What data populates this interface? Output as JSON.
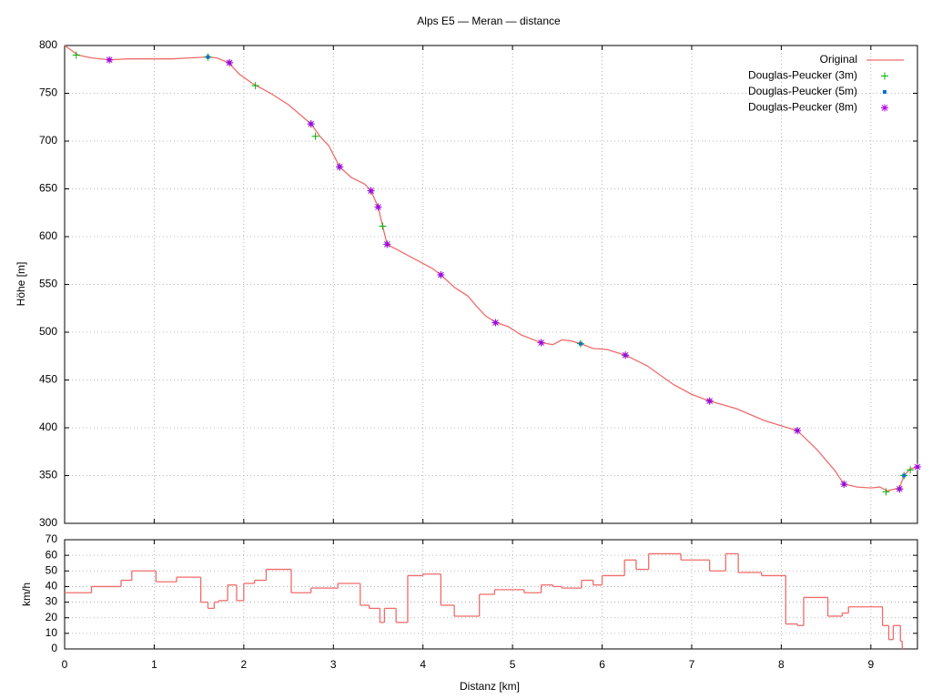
{
  "chart_data": [
    {
      "type": "line",
      "title": "Alps E5 — Meran — distance",
      "ylabel": "Höhe [m]",
      "xlim": [
        0,
        9.52
      ],
      "ylim": [
        300,
        800
      ],
      "yticks": [
        300,
        350,
        400,
        450,
        500,
        550,
        600,
        650,
        700,
        750,
        800
      ],
      "grid": true,
      "legend": "top-right",
      "series": [
        {
          "name": "Original",
          "color": "#f06b6b",
          "mode": "line",
          "x": [
            0,
            0.15,
            0.3,
            0.5,
            0.7,
            1.0,
            1.2,
            1.4,
            1.6,
            1.7,
            1.83,
            1.95,
            2.1,
            2.3,
            2.5,
            2.6,
            2.75,
            2.85,
            2.95,
            3.07,
            3.2,
            3.35,
            3.42,
            3.5,
            3.55,
            3.6,
            3.8,
            4.0,
            4.1,
            4.2,
            4.35,
            4.5,
            4.6,
            4.7,
            4.82,
            4.95,
            5.1,
            5.32,
            5.45,
            5.55,
            5.65,
            5.76,
            5.9,
            6.05,
            6.26,
            6.5,
            6.8,
            7.0,
            7.2,
            7.5,
            7.8,
            8.0,
            8.18,
            8.4,
            8.6,
            8.7,
            8.85,
            9.0,
            9.1,
            9.18,
            9.32,
            9.37,
            9.44,
            9.52
          ],
          "values": [
            800,
            790,
            787,
            785,
            786,
            786,
            786,
            787,
            788,
            787,
            782,
            770,
            760,
            750,
            738,
            730,
            718,
            705,
            695,
            673,
            662,
            655,
            648,
            631,
            611,
            592,
            582,
            572,
            567,
            560,
            547,
            538,
            527,
            517,
            510,
            506,
            497,
            489,
            487,
            492,
            491,
            488,
            483,
            482,
            476,
            465,
            445,
            435,
            428,
            420,
            408,
            402,
            397,
            377,
            355,
            341,
            338,
            337,
            338,
            334,
            337,
            350,
            357,
            359
          ]
        },
        {
          "name": "Douglas-Peucker (3m)",
          "color": "#00b000",
          "mode": "plus",
          "x": [
            0.13,
            1.6,
            1.84,
            2.13,
            2.75,
            2.8,
            3.07,
            3.42,
            3.5,
            3.55,
            3.6,
            4.2,
            4.81,
            5.32,
            5.76,
            6.26,
            7.2,
            8.18,
            8.7,
            9.17,
            9.32,
            9.37,
            9.44,
            9.52
          ],
          "values": [
            790,
            788,
            782,
            758,
            718,
            705,
            673,
            648,
            631,
            611,
            592,
            560,
            510,
            489,
            488,
            476,
            428,
            397,
            341,
            333,
            336,
            350,
            356,
            359
          ]
        },
        {
          "name": "Douglas-Peucker (5m)",
          "color": "#1070d0",
          "mode": "dot",
          "x": [
            0.5,
            1.6,
            1.84,
            2.75,
            3.07,
            3.42,
            3.5,
            3.6,
            4.2,
            4.81,
            5.32,
            5.76,
            6.26,
            7.2,
            8.18,
            8.7,
            9.32,
            9.37,
            9.52
          ],
          "values": [
            785,
            788,
            782,
            718,
            673,
            648,
            631,
            592,
            560,
            510,
            489,
            488,
            476,
            428,
            397,
            341,
            336,
            350,
            359
          ]
        },
        {
          "name": "Douglas-Peucker (8m)",
          "color": "#b000e0",
          "mode": "star",
          "x": [
            0.5,
            1.84,
            2.75,
            3.07,
            3.42,
            3.5,
            3.6,
            4.2,
            4.81,
            5.32,
            6.26,
            7.2,
            8.18,
            8.7,
            9.32,
            9.52
          ],
          "values": [
            785,
            782,
            718,
            673,
            648,
            631,
            592,
            560,
            510,
            489,
            476,
            428,
            397,
            341,
            336,
            359
          ]
        }
      ]
    },
    {
      "type": "step",
      "xlabel": "Distanz [km]",
      "ylabel": "km/h",
      "color": "#f06b6b",
      "xlim": [
        0,
        9.52
      ],
      "xticks": [
        0,
        1,
        2,
        3,
        4,
        5,
        6,
        7,
        8,
        9
      ],
      "ylim": [
        0,
        70
      ],
      "yticks": [
        0,
        10,
        20,
        30,
        40,
        50,
        60,
        70
      ],
      "grid": true,
      "x": [
        0,
        0.3,
        0.63,
        0.75,
        1.02,
        1.25,
        1.52,
        1.6,
        1.67,
        1.72,
        1.82,
        1.92,
        2.0,
        2.12,
        2.25,
        2.53,
        2.75,
        3.05,
        3.3,
        3.4,
        3.52,
        3.57,
        3.7,
        3.83,
        4.0,
        4.2,
        4.35,
        4.63,
        4.8,
        5.13,
        5.32,
        5.45,
        5.55,
        5.77,
        5.9,
        6.0,
        6.25,
        6.38,
        6.52,
        6.88,
        7.2,
        7.38,
        7.52,
        7.78,
        8.05,
        8.18,
        8.25,
        8.52,
        8.68,
        8.75,
        9.13,
        9.2,
        9.25,
        9.33,
        9.35
      ],
      "values": [
        36,
        40,
        44,
        50,
        43,
        46,
        30,
        26,
        30,
        31,
        41,
        31,
        42,
        44,
        51,
        36,
        39,
        42,
        28,
        26,
        17,
        26,
        17,
        47,
        48,
        28,
        21,
        35,
        38,
        36,
        41,
        40,
        39,
        44,
        41,
        47,
        57,
        51,
        61,
        57,
        50,
        61,
        49,
        47,
        16,
        15,
        33,
        21,
        23,
        27,
        15,
        6,
        15,
        5,
        0
      ]
    }
  ]
}
